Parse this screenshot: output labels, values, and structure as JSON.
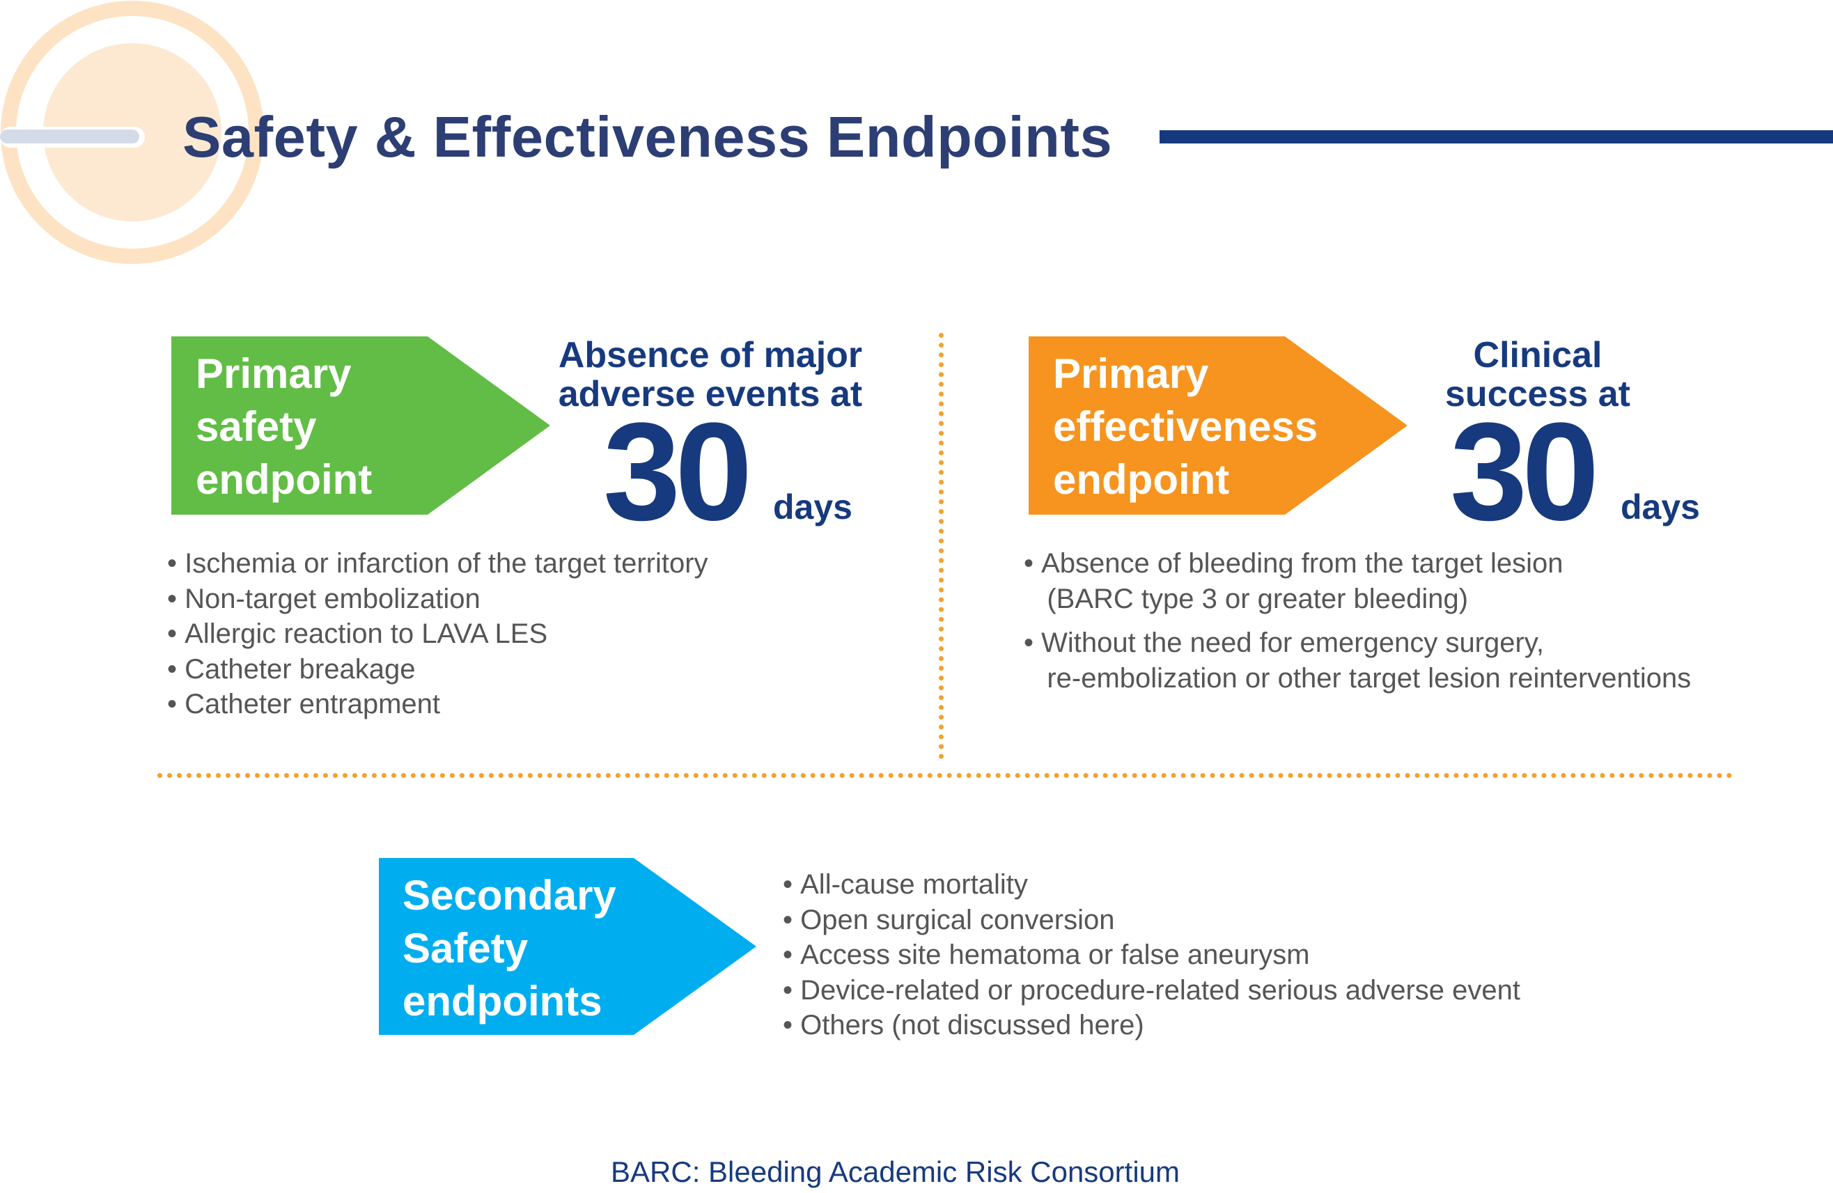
{
  "colors": {
    "navy": "#173a7e",
    "green": "#62bd46",
    "orange": "#f6941f",
    "cyan": "#00aeef",
    "dots": "#f5a12a",
    "logo_ring": "#fde3c4",
    "logo_bar": "#d4dbe8"
  },
  "header": {
    "title": "Safety & Effectiveness Endpoints",
    "logo_icon": "ring-logo-icon"
  },
  "primary_safety": {
    "arrow_label": "Primary\nsafety\nendpoint",
    "heading": "Absence of major\nadverse events at",
    "number": "30",
    "unit": "days",
    "bullets": [
      "Ischemia or infarction of the target territory",
      "Non-target embolization",
      "Allergic reaction to LAVA LES",
      "Catheter breakage",
      "Catheter entrapment"
    ]
  },
  "primary_effectiveness": {
    "arrow_label": "Primary\neffectiveness\nendpoint",
    "heading": "Clinical\nsuccess at",
    "number": "30",
    "unit": "days",
    "bullets": [
      {
        "line1": "Absence of bleeding from the target lesion",
        "line2": "(BARC type 3 or greater bleeding)"
      },
      {
        "line1": "Without the need for emergency surgery,",
        "line2": "re-embolization or other target lesion reinterventions"
      }
    ]
  },
  "secondary_safety": {
    "arrow_label": "Secondary\nSafety\nendpoints",
    "bullets": [
      "All-cause mortality",
      "Open surgical conversion",
      "Access site hematoma or false aneurysm",
      "Device-related or procedure-related serious adverse event",
      "Others (not discussed here)"
    ]
  },
  "footnote": "BARC: Bleeding Academic Risk Consortium"
}
